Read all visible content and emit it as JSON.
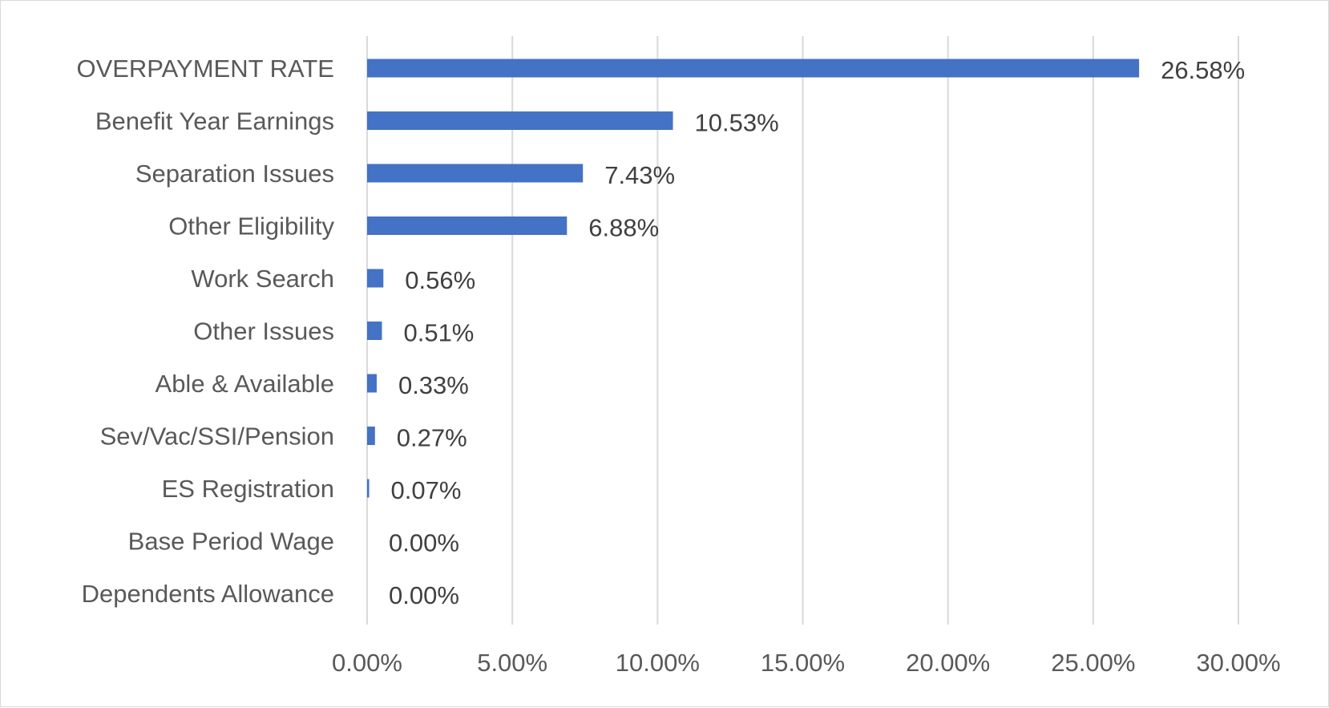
{
  "chart_data": {
    "type": "bar",
    "orientation": "horizontal",
    "categories": [
      "OVERPAYMENT RATE",
      "Benefit Year Earnings",
      "Separation Issues",
      "Other Eligibility",
      "Work Search",
      "Other Issues",
      "Able & Available",
      "Sev/Vac/SSI/Pension",
      "ES Registration",
      "Base Period Wage",
      "Dependents Allowance"
    ],
    "values": [
      26.58,
      10.53,
      7.43,
      6.88,
      0.56,
      0.51,
      0.33,
      0.27,
      0.07,
      0.0,
      0.0
    ],
    "data_labels": [
      "26.58%",
      "10.53%",
      "7.43%",
      "6.88%",
      "0.56%",
      "0.51%",
      "0.33%",
      "0.27%",
      "0.07%",
      "0.00%",
      "0.00%"
    ],
    "x_ticks": [
      "0.00%",
      "5.00%",
      "10.00%",
      "15.00%",
      "20.00%",
      "25.00%",
      "30.00%"
    ],
    "xlim": [
      0,
      30
    ],
    "title": "",
    "xlabel": "",
    "ylabel": "",
    "grid": "vertical",
    "legend": "none",
    "colors": {
      "bar": "#4472c4",
      "grid": "#d9d9d9",
      "text": "#595959"
    }
  }
}
